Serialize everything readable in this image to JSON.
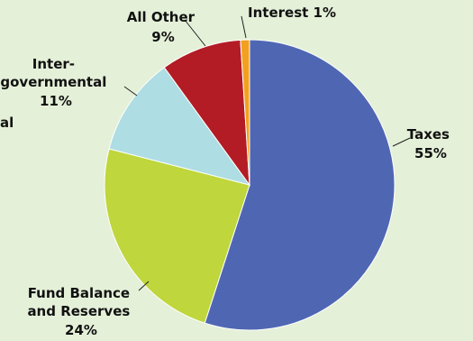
{
  "chart_data": {
    "type": "pie",
    "title": "",
    "slices": [
      {
        "label": "Taxes",
        "percent_label": "55%",
        "value": 55,
        "color": "#4f67b3"
      },
      {
        "label": "Fund Balance and Reserves",
        "percent_label": "24%",
        "value": 24,
        "color": "#bfd63c"
      },
      {
        "label": "Inter-governmental",
        "percent_label": "11%",
        "value": 11,
        "color": "#aedde3"
      },
      {
        "label": "All Other",
        "percent_label": "9%",
        "value": 9,
        "color": "#b31c24"
      },
      {
        "label": "Interest",
        "percent_label": "1%",
        "value": 1,
        "color": "#f2a01f"
      }
    ],
    "labels": {
      "taxes": {
        "line1": "Taxes",
        "line2": "55%"
      },
      "fund": {
        "line1": "Fund Balance",
        "line2": "and Reserves",
        "line3": "24%"
      },
      "intergov": {
        "line1": "Inter-",
        "line2": "governmental",
        "line3": "11%"
      },
      "other": {
        "line1": "All Other",
        "line2": "9%"
      },
      "interest": {
        "line1": "Interest 1%"
      },
      "cut": {
        "line1": "al"
      }
    }
  }
}
